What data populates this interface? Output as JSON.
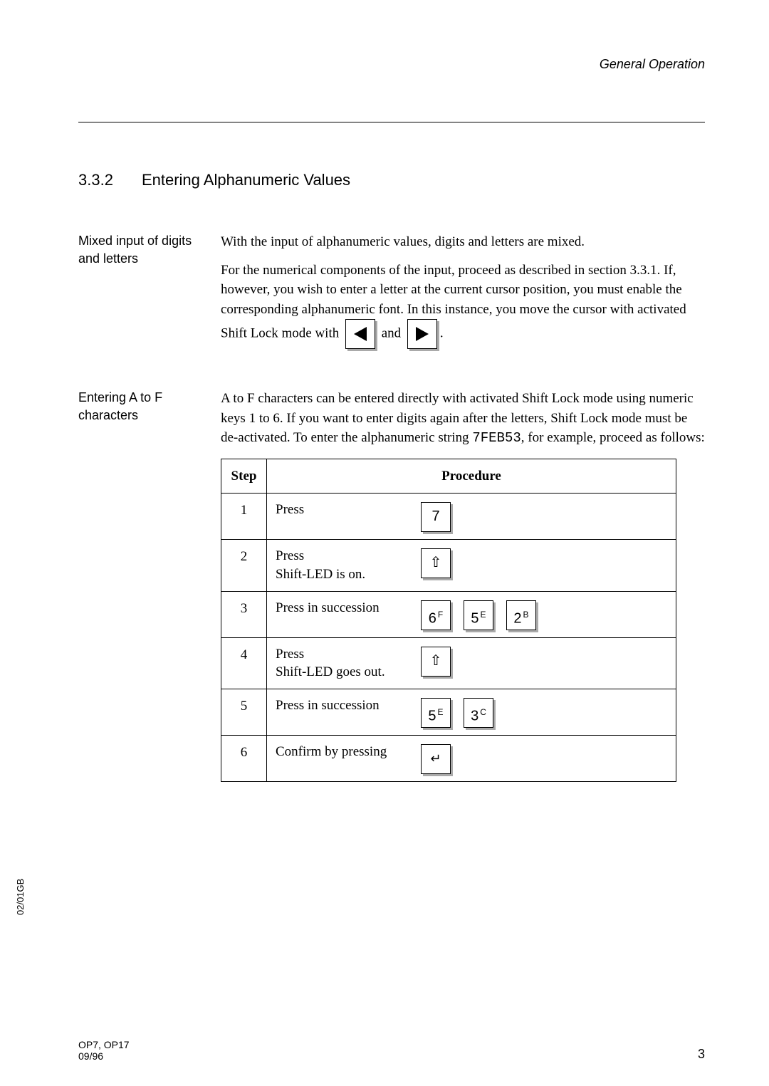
{
  "header": {
    "running_title": "General Operation"
  },
  "section": {
    "number": "3.3.2",
    "title": "Entering Alphanumeric   Values"
  },
  "block1": {
    "label": "Mixed input of digits and letters",
    "p1": "With the input of alphanumeric values, digits and letters are mixed.",
    "p2a": "For the numerical components of the input, proceed as described in section 3.3.1. If, however, you wish to enter a letter at the current cursor position, you must enable the corresponding alphanumeric font. In this instance, you move the cursor with activated Shift Lock mode with ",
    "and": " and ",
    "p2b": "."
  },
  "block2": {
    "label": "Entering A to F characters",
    "p_a": "A to F characters can be entered directly with activated Shift Lock mode using numeric keys 1 to 6. If you want to enter digits again after the letters, Shift Lock mode must be de-activated. To enter the alphanumeric string ",
    "code": "7FEB53",
    "p_b": ", for example, proceed as follows:"
  },
  "table": {
    "head_step": "Step",
    "head_proc": "Procedure",
    "rows": [
      {
        "n": "1",
        "text": "Press",
        "keys": [
          {
            "t": "num",
            "label": "7"
          }
        ]
      },
      {
        "n": "2",
        "text_l1": "Press",
        "text_l2": "Shift-LED is on.",
        "keys": [
          {
            "t": "shift"
          }
        ]
      },
      {
        "n": "3",
        "text": "Press in succession",
        "keys": [
          {
            "t": "numsup",
            "main": "6",
            "sup": "F"
          },
          {
            "t": "numsup",
            "main": "5",
            "sup": "E"
          },
          {
            "t": "numsup",
            "main": "2",
            "sup": "B"
          }
        ]
      },
      {
        "n": "4",
        "text_l1": "Press",
        "text_l2": "Shift-LED goes out.",
        "keys": [
          {
            "t": "shift"
          }
        ]
      },
      {
        "n": "5",
        "text": "Press in succession",
        "keys": [
          {
            "t": "numsup",
            "main": "5",
            "sup": "E"
          },
          {
            "t": "numsup",
            "main": "3",
            "sup": "C"
          }
        ]
      },
      {
        "n": "6",
        "text": "Confirm by pressing",
        "keys": [
          {
            "t": "enter"
          }
        ]
      }
    ]
  },
  "footer": {
    "side": "02/01GB",
    "left_l1": "OP7, OP17",
    "left_l2": "09/96",
    "page": "3"
  }
}
